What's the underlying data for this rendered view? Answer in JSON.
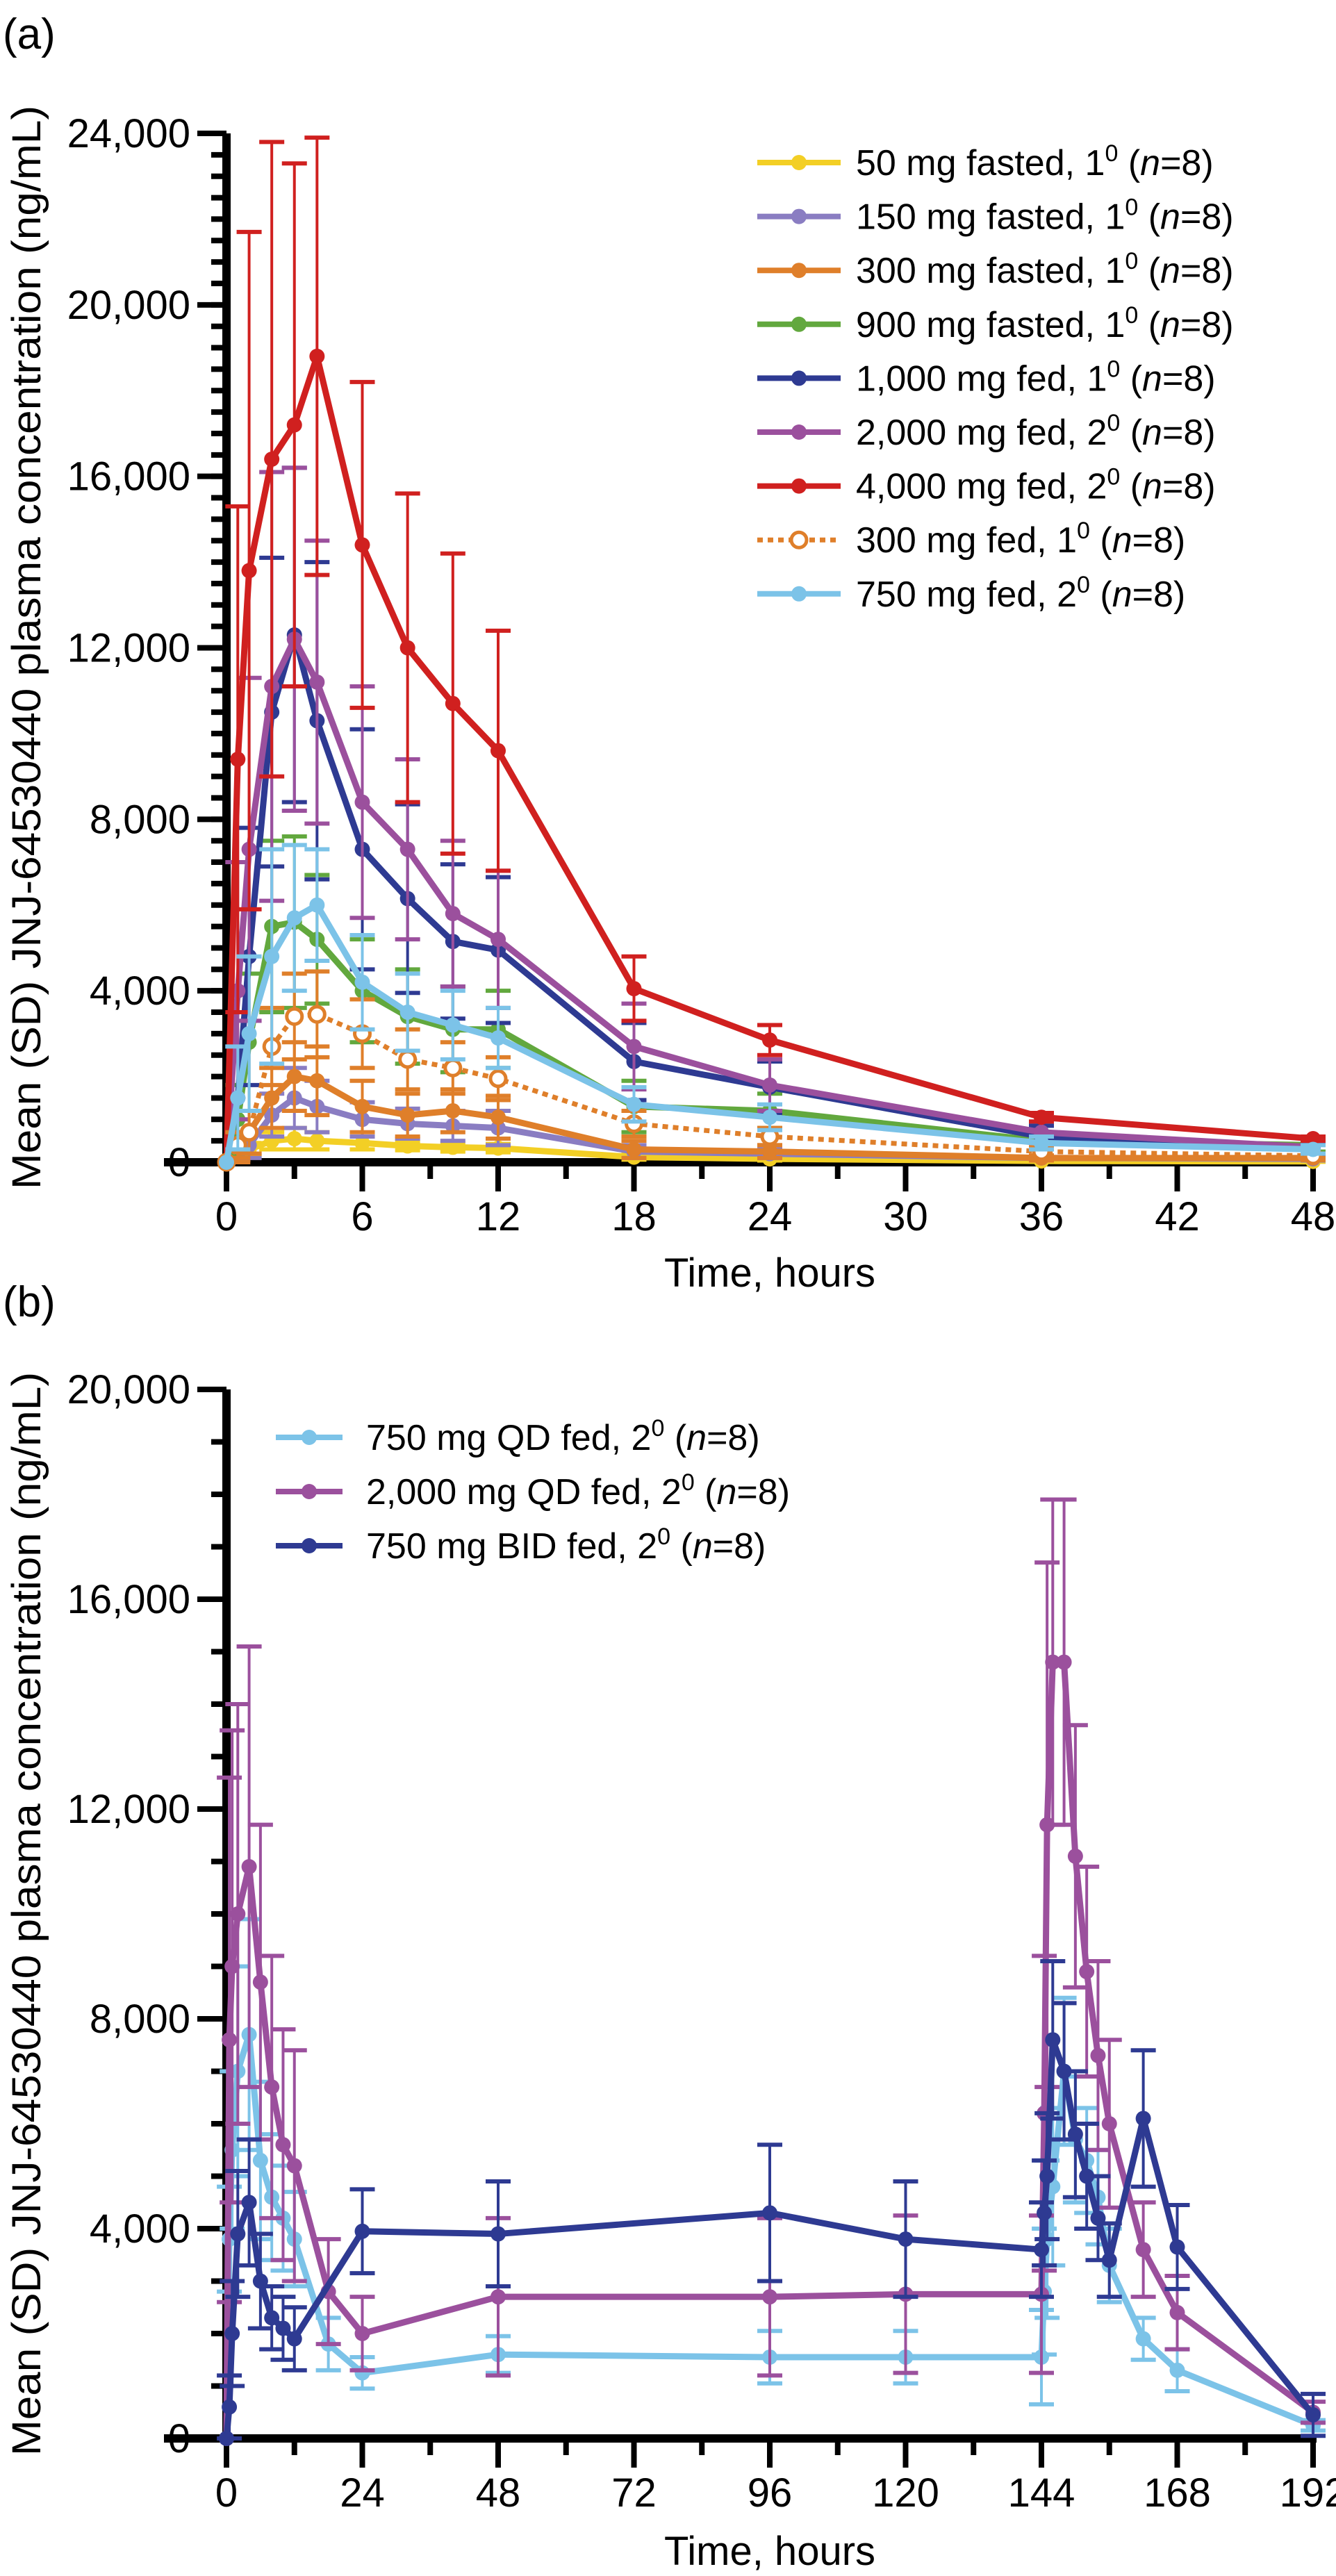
{
  "n_symbol": "n",
  "chart_data": [
    {
      "type": "line",
      "panel_label": "(a)",
      "xlabel": "Time, hours",
      "ylabel": "Mean (SD) JNJ-64530440 plasma concentration (ng/mL)",
      "xlim": [
        0,
        48
      ],
      "ylim": [
        0,
        24000
      ],
      "xticks": [
        0,
        6,
        12,
        18,
        24,
        30,
        36,
        42,
        48
      ],
      "xtick_labels": [
        "0",
        "6",
        "12",
        "18",
        "24",
        "30",
        "36",
        "42",
        "48"
      ],
      "yticks": [
        0,
        4000,
        8000,
        12000,
        16000,
        20000,
        24000
      ],
      "ytick_labels": [
        "0",
        "4,000",
        "8,000",
        "12,000",
        "16,000",
        "20,000",
        "24,000"
      ],
      "grid": false,
      "legend_position": "top-right",
      "error_bars": "SD",
      "x": [
        0,
        0.5,
        1,
        2,
        3,
        4,
        6,
        8,
        10,
        12,
        18,
        24,
        36,
        48
      ],
      "series": [
        {
          "name": "50 mg fasted, 1",
          "sup": "0",
          "n": "8",
          "color": "#F3CF25",
          "style": "solid",
          "values": [
            0,
            150,
            300,
            500,
            550,
            500,
            450,
            380,
            350,
            330,
            120,
            80,
            30,
            20
          ],
          "sd": [
            0,
            100,
            150,
            200,
            250,
            200,
            150,
            100,
            100,
            100,
            60,
            40,
            20,
            10
          ]
        },
        {
          "name": "150 mg fasted, 1",
          "sup": "0",
          "n": "8",
          "color": "#8A7DC2",
          "style": "solid",
          "values": [
            0,
            200,
            400,
            1100,
            1500,
            1300,
            1000,
            900,
            850,
            800,
            250,
            200,
            100,
            80
          ],
          "sd": [
            0,
            150,
            300,
            500,
            700,
            600,
            400,
            350,
            350,
            400,
            150,
            100,
            50,
            40
          ]
        },
        {
          "name": "300 mg fasted, 1",
          "sup": "0",
          "n": "8",
          "color": "#DF7F2A",
          "style": "solid",
          "values": [
            0,
            300,
            700,
            1500,
            2000,
            1900,
            1300,
            1100,
            1200,
            1050,
            300,
            250,
            100,
            100
          ],
          "sd": [
            0,
            300,
            500,
            700,
            800,
            800,
            600,
            500,
            500,
            500,
            200,
            150,
            60,
            50
          ]
        },
        {
          "name": "900 mg fasted, 1",
          "sup": "0",
          "n": "8",
          "color": "#62A83E",
          "style": "solid",
          "values": [
            0,
            1000,
            2800,
            5500,
            5600,
            5200,
            4000,
            3400,
            3100,
            3100,
            1300,
            1200,
            500,
            400
          ],
          "sd": [
            0,
            800,
            1600,
            2000,
            2000,
            1500,
            1200,
            1100,
            1000,
            900,
            600,
            400,
            200,
            150
          ]
        },
        {
          "name": "1,000 mg fed, 1",
          "sup": "0",
          "n": "8",
          "color": "#2E3A92",
          "style": "solid",
          "values": [
            0,
            1500,
            4800,
            10500,
            12300,
            10300,
            7300,
            6150,
            5150,
            4950,
            2350,
            1750,
            600,
            300
          ],
          "sd": [
            0,
            1200,
            3000,
            3600,
            3900,
            3700,
            2800,
            2200,
            1800,
            1700,
            900,
            600,
            250,
            150
          ]
        },
        {
          "name": "2,000 mg fed, 2",
          "sup": "0",
          "n": "8",
          "color": "#9B509D",
          "style": "solid",
          "values": [
            0,
            4000,
            7300,
            11100,
            12200,
            11200,
            8400,
            7300,
            5800,
            5200,
            2700,
            1800,
            700,
            350
          ],
          "sd": [
            0,
            3000,
            4000,
            5000,
            4000,
            3300,
            2700,
            2100,
            1700,
            1600,
            1000,
            600,
            250,
            150
          ]
        },
        {
          "name": "4,000 mg fed, 2",
          "sup": "0",
          "n": "8",
          "color": "#D0201F",
          "style": "solid",
          "values": [
            0,
            9400,
            13800,
            16400,
            17200,
            18800,
            14400,
            12000,
            10700,
            9600,
            4050,
            2850,
            1050,
            550
          ],
          "sd": [
            0,
            5900,
            7900,
            7400,
            6100,
            5100,
            3800,
            3600,
            3500,
            2800,
            750,
            350,
            100,
            50
          ]
        },
        {
          "name": "300 mg fed, 1",
          "sup": "0",
          "n": "8",
          "color": "#DF7F2A",
          "style": "dotted-open",
          "values": [
            0,
            400,
            700,
            2700,
            3400,
            3450,
            3000,
            2400,
            2200,
            1950,
            900,
            600,
            250,
            150
          ],
          "sd": [
            0,
            300,
            500,
            900,
            1000,
            1000,
            800,
            700,
            600,
            500,
            300,
            200,
            100,
            50
          ]
        },
        {
          "name": "750 mg fed, 2",
          "sup": "0",
          "n": "8",
          "color": "#7CC3E8",
          "style": "solid",
          "values": [
            0,
            1500,
            3000,
            4800,
            5700,
            6000,
            4200,
            3500,
            3200,
            2900,
            1350,
            1050,
            450,
            300
          ],
          "sd": [
            0,
            1200,
            1800,
            2500,
            1700,
            1300,
            1100,
            900,
            800,
            700,
            400,
            300,
            150,
            100
          ]
        }
      ]
    },
    {
      "type": "line",
      "panel_label": "(b)",
      "xlabel": "Time, hours",
      "ylabel": "Mean (SD) JNJ-64530440 plasma concentration (ng/mL)",
      "xlim": [
        0,
        192
      ],
      "ylim": [
        0,
        20000
      ],
      "xticks": [
        0,
        24,
        48,
        72,
        96,
        120,
        144,
        168,
        192
      ],
      "xtick_labels": [
        "0",
        "24",
        "48",
        "72",
        "96",
        "120",
        "144",
        "168",
        "192"
      ],
      "yticks": [
        0,
        4000,
        8000,
        12000,
        16000,
        20000
      ],
      "ytick_labels": [
        "0",
        "4,000",
        "8,000",
        "12,000",
        "16,000",
        "20,000"
      ],
      "grid": false,
      "legend_position": "top-left",
      "error_bars": "SD",
      "x": [
        0,
        0.5,
        1,
        2,
        4,
        6,
        8,
        10,
        12,
        18,
        24,
        48,
        96,
        120,
        144,
        144.5,
        145,
        146,
        148,
        150,
        152,
        154,
        156,
        162,
        168,
        192
      ],
      "series": [
        {
          "name": "750 mg QD fed, 2",
          "sup": "0",
          "n": "8",
          "color": "#7CC3E8",
          "style": "solid",
          "values": [
            0,
            3800,
            5500,
            7000,
            7700,
            5300,
            4600,
            4200,
            3800,
            1800,
            1250,
            1600,
            1550,
            1550,
            1550,
            2800,
            3800,
            4800,
            7000,
            5700,
            5300,
            4600,
            3300,
            1900,
            1300,
            250
          ],
          "sd": [
            0,
            1000,
            1500,
            2000,
            2200,
            1500,
            1200,
            1000,
            900,
            500,
            300,
            350,
            500,
            500,
            900,
            1200,
            1500,
            1500,
            1400,
            1200,
            1000,
            900,
            700,
            400,
            400,
            100
          ]
        },
        {
          "name": "2,000 mg QD fed, 2",
          "sup": "0",
          "n": "8",
          "color": "#9B509D",
          "style": "solid",
          "values": [
            0,
            7600,
            9000,
            10000,
            10900,
            8700,
            6700,
            5600,
            5200,
            2800,
            2000,
            2700,
            2700,
            2750,
            2750,
            6200,
            11700,
            14800,
            14800,
            11100,
            8900,
            7300,
            6000,
            3600,
            2400,
            500
          ],
          "sd": [
            0,
            5000,
            4500,
            4000,
            4200,
            3000,
            2500,
            2200,
            2200,
            1000,
            700,
            1500,
            1500,
            1500,
            1500,
            3000,
            5000,
            3100,
            3100,
            2500,
            2000,
            1800,
            1600,
            900,
            700,
            200
          ]
        },
        {
          "name": "750 mg BID fed, 2",
          "sup": "0",
          "n": "8",
          "color": "#2E3A92",
          "style": "solid",
          "values": [
            0,
            600,
            2000,
            3900,
            4500,
            3000,
            2300,
            2100,
            1900,
            null,
            3950,
            3900,
            4300,
            3800,
            3600,
            4300,
            5000,
            7600,
            7000,
            5800,
            5000,
            4200,
            3400,
            6100,
            3650,
            450
          ],
          "sd": [
            0,
            600,
            1000,
            1200,
            1200,
            900,
            600,
            600,
            600,
            null,
            800,
            1000,
            1300,
            1100,
            900,
            1000,
            1200,
            1500,
            1300,
            1200,
            1000,
            800,
            700,
            1300,
            800,
            400
          ]
        }
      ]
    }
  ]
}
